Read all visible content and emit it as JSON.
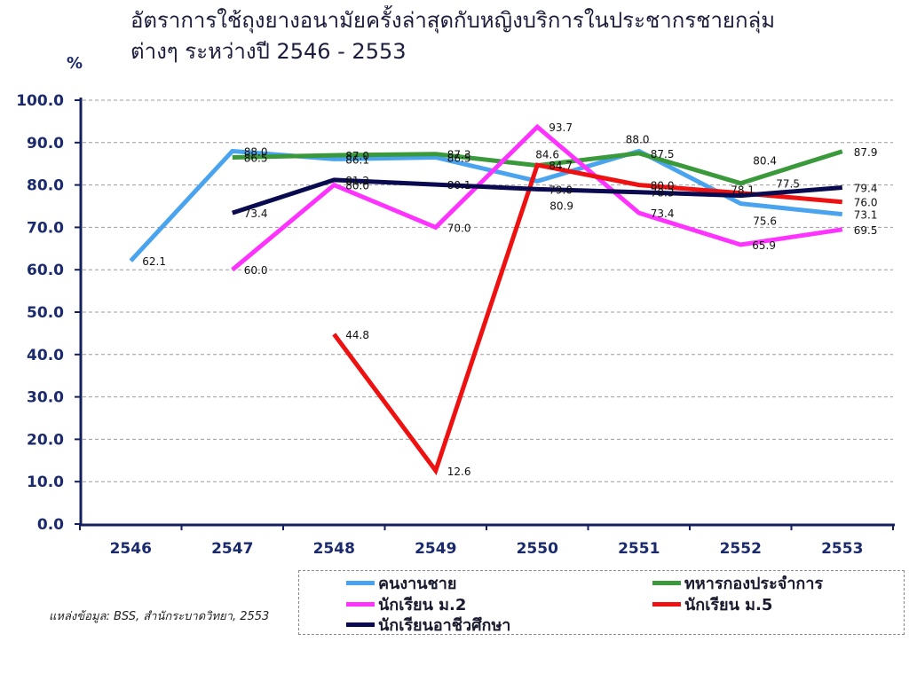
{
  "chart_data": {
    "type": "line",
    "title": "อัตราการใช้ถุงยางอนามัยครั้งล่าสุดกับหญิงบริการในประชากรชายกลุ่ม\nต่างๆ ระหว่างปี 2546 - 2553",
    "xlabel": "",
    "ylabel": "%",
    "categories": [
      "2546",
      "2547",
      "2548",
      "2549",
      "2550",
      "2551",
      "2552",
      "2553"
    ],
    "ylim": [
      0,
      100
    ],
    "yticks": [
      0,
      10,
      20,
      30,
      40,
      50,
      60,
      70,
      80,
      90,
      100
    ],
    "grid": true,
    "legend": "bottom",
    "data_labels": true,
    "series": [
      {
        "name": "คนงานชาย",
        "color": "#4aa3ef",
        "values": [
          62.1,
          88.0,
          86.1,
          86.5,
          80.9,
          88.0,
          75.6,
          73.1
        ]
      },
      {
        "name": "ทหารกองประจำการ",
        "color": "#3a993a",
        "values": [
          null,
          86.5,
          87.0,
          87.3,
          84.6,
          87.5,
          80.4,
          87.9
        ]
      },
      {
        "name": "นักเรียน ม.2",
        "color": "#ff33ff",
        "values": [
          null,
          60.0,
          80.0,
          70.0,
          93.7,
          73.4,
          65.9,
          69.5
        ]
      },
      {
        "name": "นักเรียน ม.5",
        "color": "#ee1111",
        "values": [
          null,
          null,
          44.8,
          12.6,
          84.7,
          80.0,
          78.1,
          76.0
        ]
      },
      {
        "name": "นักเรียนอาชีวศึกษา",
        "color": "#0a0a50",
        "values": [
          null,
          73.4,
          81.2,
          80.1,
          79.0,
          78.3,
          77.5,
          79.4
        ]
      }
    ]
  },
  "source": "แหล่งข้อมูล: BSS, สำนักระบาดวิทยา, 2553"
}
